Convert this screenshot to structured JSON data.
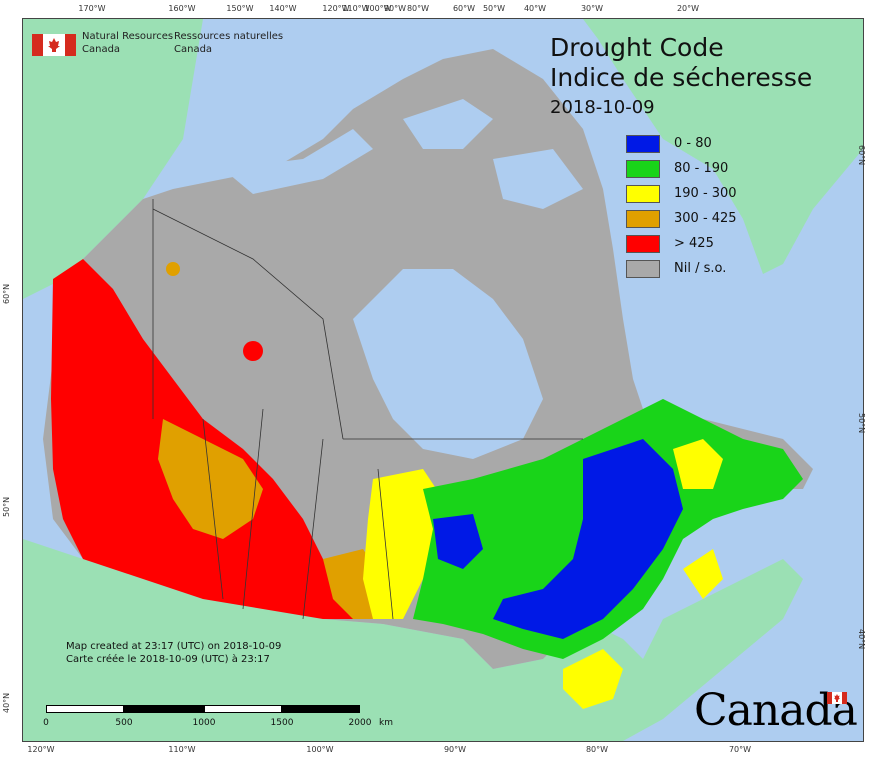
{
  "title": {
    "line1": "Drought Code",
    "line2": "Indice de sécheresse",
    "date": "2018-10-09"
  },
  "agency": {
    "en_line1": "Natural Resources",
    "en_line2": "Canada",
    "fr_line1": "Ressources naturelles",
    "fr_line2": "Canada"
  },
  "legend": [
    {
      "label": "0 - 80",
      "color": "#0019e6"
    },
    {
      "label": "80 - 190",
      "color": "#19d419"
    },
    {
      "label": "190 - 300",
      "color": "#ffff00"
    },
    {
      "label": "300 - 425",
      "color": "#e0a000"
    },
    {
      "label": "> 425",
      "color": "#ff0000"
    },
    {
      "label": "Nil / s.o.",
      "color": "#a9a9a9"
    }
  ],
  "credit": {
    "en": "Map created at 23:17 (UTC) on 2018-10-09",
    "fr": "Carte créée le 2018-10-09 (UTC) à 23:17"
  },
  "scale": {
    "labels": [
      "0",
      "500",
      "1000",
      "1500",
      "2000"
    ],
    "unit": "km"
  },
  "wordmark": "Canada",
  "graticule": {
    "top": [
      "170°W",
      "160°W",
      "150°W",
      "140°W",
      "120°W",
      "110°W",
      "100°W",
      "90°W",
      "80°W",
      "60°W",
      "50°W",
      "40°W",
      "30°W",
      "20°W"
    ],
    "bottom": [
      "120°W",
      "110°W",
      "100°W",
      "90°W",
      "80°W",
      "70°W"
    ],
    "left": [
      "60°N",
      "50°N",
      "40°N"
    ],
    "right": [
      "60°N",
      "50°N",
      "40°N"
    ]
  },
  "colors": {
    "water": "#aecdf0",
    "foreign_land": "#9be0b4",
    "frame": "#444444"
  }
}
